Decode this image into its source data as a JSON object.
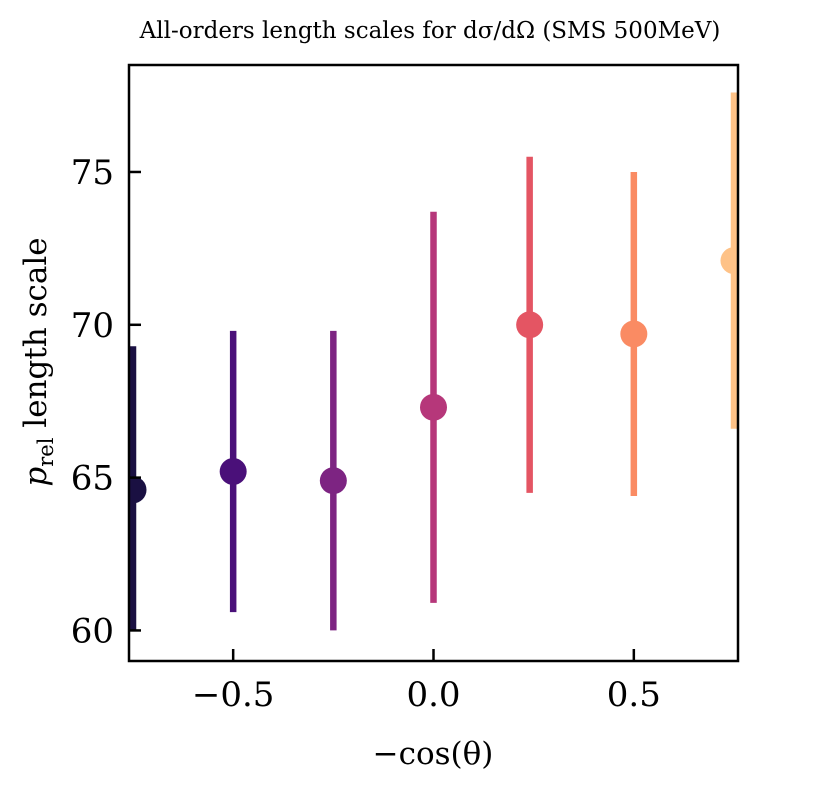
{
  "chart_data": {
    "type": "scatter",
    "title": "All-orders length scales for dσ/dΩ (SMS 500MeV)",
    "xlabel": "−cos(θ)",
    "ylabel": "p_rel length scale",
    "ylabel_main": "p",
    "ylabel_sub": "rel",
    "ylabel_rest": " length scale",
    "xlim": [
      -0.76,
      0.76
    ],
    "ylim": [
      59.0,
      78.5
    ],
    "x_ticks": [
      -0.5,
      0.0,
      0.5
    ],
    "x_tick_labels": [
      "−0.5",
      "0.0",
      "0.5"
    ],
    "y_ticks": [
      60,
      65,
      70,
      75
    ],
    "y_tick_labels": [
      "60",
      "65",
      "70",
      "75"
    ],
    "grid": false,
    "points": [
      {
        "x": -0.75,
        "y": 64.6,
        "ylow": 60.0,
        "yhigh": 69.3,
        "color": "#1a1042"
      },
      {
        "x": -0.5,
        "y": 65.2,
        "ylow": 60.6,
        "yhigh": 69.8,
        "color": "#4a1079"
      },
      {
        "x": -0.25,
        "y": 64.9,
        "ylow": 60.0,
        "yhigh": 69.8,
        "color": "#7d2482"
      },
      {
        "x": 0.0,
        "y": 67.3,
        "ylow": 60.9,
        "yhigh": 73.7,
        "color": "#b6377a"
      },
      {
        "x": 0.24,
        "y": 70.0,
        "ylow": 64.5,
        "yhigh": 75.5,
        "color": "#e45563"
      },
      {
        "x": 0.5,
        "y": 69.7,
        "ylow": 64.4,
        "yhigh": 75.0,
        "color": "#fa8b63"
      },
      {
        "x": 0.75,
        "y": 72.1,
        "ylow": 66.6,
        "yhigh": 77.6,
        "color": "#fec287"
      }
    ]
  }
}
